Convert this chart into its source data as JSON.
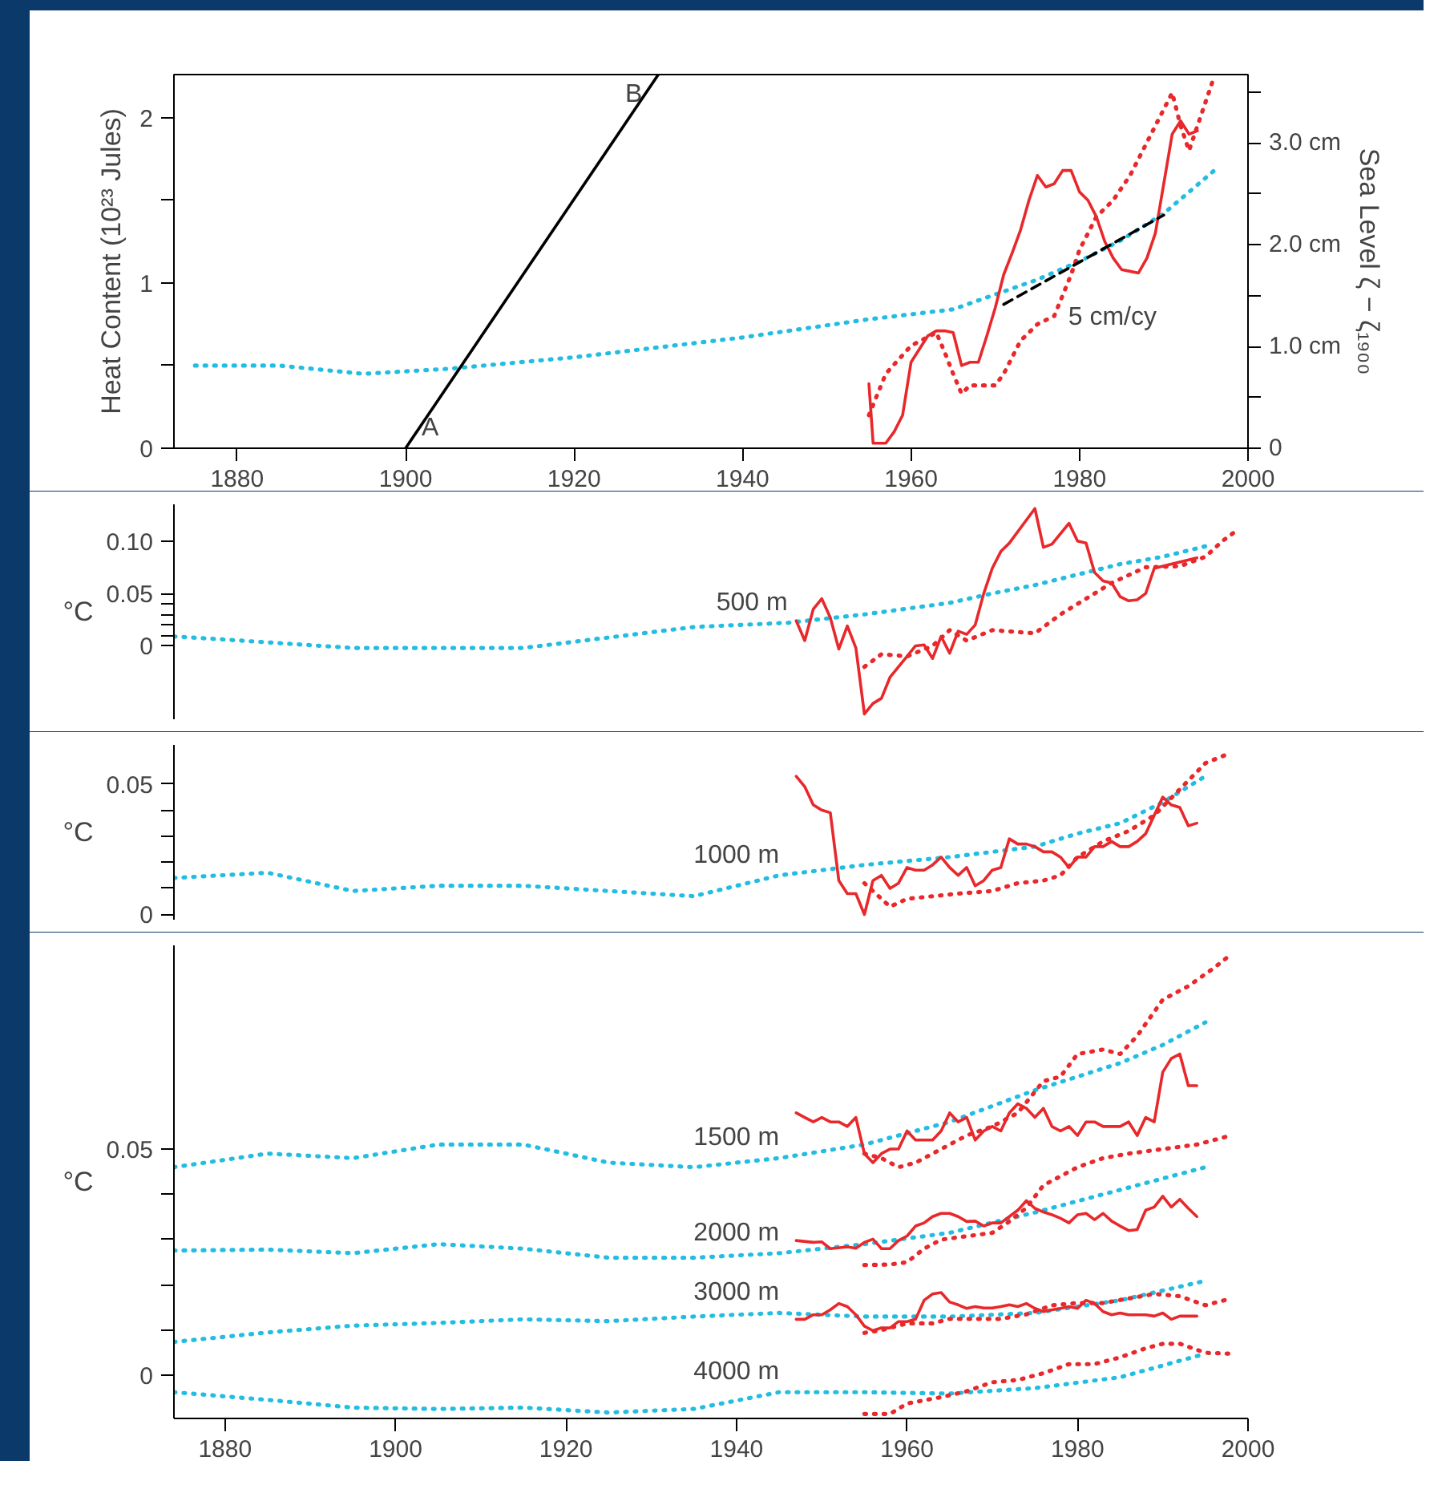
{
  "chart_data": [
    {
      "type": "line",
      "ylabel": "Heat Content (10²³ Jules)",
      "y2label": "Sea Level ζ − ζ₁₉₀₀",
      "xlim": [
        1872.5,
        2000
      ],
      "ylim": [
        0,
        2.26
      ],
      "y2lim": [
        0,
        3.67
      ],
      "xticks": [
        1880,
        1900,
        1920,
        1940,
        1960,
        1980,
        2000
      ],
      "yticks": [
        0,
        {
          "value": 0.5,
          "label": null
        },
        1,
        {
          "value": 1.5,
          "label": null
        },
        2
      ],
      "y2ticks": [
        0,
        {
          "value": 0.5,
          "label": null
        },
        {
          "value": 1,
          "label": "1.0 cm"
        },
        {
          "value": 1.5,
          "label": null
        },
        {
          "value": 2,
          "label": "2.0 cm"
        },
        {
          "value": 2.5,
          "label": null
        },
        {
          "value": 3,
          "label": "3.0 cm"
        },
        {
          "value": 3.5,
          "label": null
        }
      ],
      "series": [
        {
          "color": "#22bde0",
          "line_style": "dotted",
          "x": [
            1875,
            1885,
            1895,
            1905,
            1920,
            1940,
            1955,
            1965,
            1970,
            1975,
            1980,
            1985,
            1990,
            1996
          ],
          "values": [
            0.5,
            0.5,
            0.45,
            0.48,
            0.55,
            0.67,
            0.78,
            0.84,
            0.93,
            1.02,
            1.13,
            1.26,
            1.42,
            1.68
          ]
        },
        {
          "color": "#e8282b",
          "line_style": "solid",
          "x": [
            1955,
            1955.5,
            1957,
            1958,
            1959,
            1960,
            1961,
            1962,
            1963,
            1964,
            1965,
            1966,
            1967,
            1968,
            1969,
            1970,
            1971,
            1972,
            1973,
            1974,
            1975,
            1976,
            1977,
            1978,
            1979,
            1980,
            1981,
            1982,
            1983,
            1984,
            1985,
            1986,
            1987,
            1988,
            1989,
            1990,
            1991,
            1992,
            1993,
            1994
          ],
          "values": [
            0.39,
            0.03,
            0.03,
            0.1,
            0.2,
            0.52,
            0.6,
            0.68,
            0.71,
            0.71,
            0.7,
            0.5,
            0.52,
            0.52,
            0.68,
            0.85,
            1.05,
            1.18,
            1.32,
            1.5,
            1.65,
            1.58,
            1.6,
            1.68,
            1.68,
            1.55,
            1.5,
            1.4,
            1.25,
            1.15,
            1.08,
            1.07,
            1.06,
            1.15,
            1.3,
            1.6,
            1.9,
            1.98,
            1.9,
            1.92
          ]
        },
        {
          "color": "#e8282b",
          "line_style": "dotted",
          "x": [
            1955,
            1957,
            1960,
            1963,
            1964,
            1965,
            1966,
            1967,
            1968,
            1970,
            1971,
            1973,
            1975,
            1977,
            1979,
            1980,
            1982,
            1984,
            1986,
            1988,
            1990,
            1991,
            1992,
            1993,
            1994,
            1996
          ],
          "values": [
            0.2,
            0.45,
            0.62,
            0.7,
            0.58,
            0.45,
            0.33,
            0.38,
            0.38,
            0.38,
            0.45,
            0.65,
            0.75,
            0.8,
            1.05,
            1.2,
            1.4,
            1.5,
            1.65,
            1.85,
            2.05,
            2.15,
            1.95,
            1.8,
            1.95,
            2.25
          ]
        },
        {
          "color": "#000000",
          "line_style": "solid",
          "x": [
            1900,
            1930
          ],
          "values": [
            0,
            2.26
          ]
        },
        {
          "color": "#000000",
          "line_style": "dashed",
          "x": [
            1971,
            1990
          ],
          "values": [
            0.87,
            1.41
          ]
        }
      ],
      "annotations": [
        {
          "text": "A",
          "x": 1900,
          "y": 0
        },
        {
          "text": "B",
          "x": 1930,
          "y": 2.26
        },
        {
          "text": "5 cm/cy",
          "x": 1976,
          "y": 1.01
        }
      ]
    },
    {
      "type": "line",
      "ylabel": "°C",
      "xlim": [
        1874,
        2000
      ],
      "ylim": [
        -0.07,
        0.135
      ],
      "tick_labels": "y",
      "yticks": [
        0,
        {
          "value": 0.01,
          "label": null
        },
        {
          "value": 0.02,
          "label": null
        },
        {
          "value": 0.03,
          "label": null
        },
        {
          "value": 0.04,
          "label": null
        },
        0.05,
        {
          "value": 0.1,
          "label": "0.10"
        }
      ],
      "series": [
        {
          "color": "#22bde0",
          "line_style": "dotted",
          "x": [
            1874,
            1880,
            1895,
            1915,
            1935,
            1946,
            1955,
            1965,
            1970,
            1975,
            1980,
            1985,
            1990,
            1995
          ],
          "values": [
            0.009,
            0.006,
            -0.002,
            -0.002,
            0.018,
            0.022,
            0.03,
            0.041,
            0.05,
            0.058,
            0.068,
            0.078,
            0.085,
            0.095
          ]
        },
        {
          "color": "#e8282b",
          "line_style": "solid",
          "x": [
            1947,
            1948,
            1949,
            1950,
            1951,
            1952,
            1953,
            1954,
            1955,
            1956,
            1957,
            1958,
            1959,
            1960,
            1961,
            1962,
            1963,
            1964,
            1965,
            1966,
            1967,
            1968,
            1969,
            1970,
            1971,
            1972,
            1975,
            1976,
            1977,
            1979,
            1980,
            1981,
            1982,
            1983,
            1984,
            1985,
            1986,
            1987,
            1988,
            1989,
            1991,
            1994
          ],
          "values": [
            0.024,
            0.005,
            0.035,
            0.045,
            0.027,
            -0.003,
            0.019,
            -0.002,
            -0.065,
            -0.055,
            -0.05,
            -0.03,
            -0.02,
            -0.01,
            0.0,
            0.001,
            -0.012,
            0.009,
            -0.007,
            0.014,
            0.011,
            0.02,
            0.05,
            0.074,
            0.09,
            0.098,
            0.131,
            0.094,
            0.097,
            0.117,
            0.1,
            0.098,
            0.07,
            0.062,
            0.06,
            0.047,
            0.043,
            0.044,
            0.05,
            0.074,
            0.078,
            0.084
          ]
        },
        {
          "color": "#e8282b",
          "line_style": "dotted",
          "x": [
            1955,
            1957,
            1960,
            1963,
            1965,
            1967,
            1970,
            1975,
            1978,
            1981,
            1984,
            1988,
            1992,
            1995,
            1997,
            1999
          ],
          "values": [
            -0.02,
            -0.008,
            -0.01,
            0.0,
            0.015,
            0.005,
            0.015,
            0.012,
            0.03,
            0.045,
            0.06,
            0.075,
            0.076,
            0.085,
            0.1,
            0.112
          ]
        }
      ],
      "annotations": [
        {
          "text": "500 m",
          "x": 1946,
          "y": 0.022
        }
      ]
    },
    {
      "type": "line",
      "ylabel": "°C",
      "xlim": [
        1874,
        2000
      ],
      "ylim": [
        -0.002,
        0.065
      ],
      "tick_labels": "y",
      "yticks": [
        0,
        {
          "value": 0.01,
          "label": null
        },
        {
          "value": 0.02,
          "label": null
        },
        {
          "value": 0.03,
          "label": null
        },
        {
          "value": 0.04,
          "label": null
        },
        0.05
      ],
      "series": [
        {
          "color": "#22bde0",
          "line_style": "dotted",
          "x": [
            1874,
            1885,
            1895,
            1905,
            1915,
            1935,
            1945,
            1955,
            1965,
            1975,
            1980,
            1985,
            1990,
            1995
          ],
          "values": [
            0.014,
            0.016,
            0.009,
            0.011,
            0.011,
            0.007,
            0.015,
            0.019,
            0.022,
            0.026,
            0.031,
            0.035,
            0.043,
            0.053
          ]
        },
        {
          "color": "#e8282b",
          "line_style": "solid",
          "x": [
            1947,
            1948,
            1949,
            1950,
            1951,
            1952,
            1953,
            1954,
            1955,
            1956,
            1957,
            1958,
            1959,
            1960,
            1961,
            1962,
            1963,
            1964,
            1965,
            1966,
            1967,
            1968,
            1969,
            1970,
            1971,
            1972,
            1973,
            1974,
            1975,
            1976,
            1977,
            1978,
            1979,
            1980,
            1981,
            1982,
            1983,
            1984,
            1985,
            1986,
            1987,
            1988,
            1990,
            1991,
            1992,
            1993,
            1994
          ],
          "values": [
            0.053,
            0.049,
            0.042,
            0.04,
            0.039,
            0.013,
            0.008,
            0.008,
            0.0,
            0.013,
            0.015,
            0.01,
            0.012,
            0.018,
            0.017,
            0.017,
            0.019,
            0.022,
            0.018,
            0.015,
            0.018,
            0.011,
            0.013,
            0.017,
            0.018,
            0.029,
            0.027,
            0.027,
            0.026,
            0.024,
            0.024,
            0.022,
            0.018,
            0.022,
            0.022,
            0.026,
            0.026,
            0.028,
            0.026,
            0.026,
            0.028,
            0.031,
            0.045,
            0.042,
            0.041,
            0.034,
            0.035
          ]
        },
        {
          "color": "#e8282b",
          "line_style": "dotted",
          "x": [
            1955,
            1958,
            1960,
            1963,
            1966,
            1970,
            1973,
            1976,
            1978,
            1980,
            1983,
            1986,
            1989,
            1992,
            1995,
            1998
          ],
          "values": [
            0.012,
            0.003,
            0.006,
            0.007,
            0.008,
            0.009,
            0.012,
            0.013,
            0.015,
            0.022,
            0.028,
            0.032,
            0.038,
            0.048,
            0.058,
            0.062
          ]
        }
      ],
      "annotations": [
        {
          "text": "1000 m",
          "x": 1945,
          "y": 0.015
        }
      ]
    },
    {
      "type": "line",
      "ylabel": "°C",
      "xlim": [
        1874,
        2000
      ],
      "ylim": [
        -0.0095,
        0.095
      ],
      "xticks": [
        1880,
        1900,
        1920,
        1940,
        1960,
        1980,
        2000
      ],
      "yticks": [
        0,
        {
          "value": 0.01,
          "label": null
        },
        {
          "value": 0.02,
          "label": null
        },
        {
          "value": 0.03,
          "label": null
        },
        {
          "value": 0.04,
          "label": null
        },
        0.05
      ],
      "series": [
        {
          "color": "#22bde0",
          "line_style": "dotted",
          "x": [
            1874,
            1885,
            1895,
            1905,
            1915,
            1925,
            1935,
            1945,
            1955,
            1965,
            1975,
            1985,
            1990,
            1995
          ],
          "values": [
            0.046,
            0.049,
            0.048,
            0.051,
            0.051,
            0.047,
            0.046,
            0.048,
            0.051,
            0.056,
            0.063,
            0.069,
            0.073,
            0.078
          ]
        },
        {
          "color": "#e8282b",
          "line_style": "solid",
          "x": [
            1947,
            1948,
            1949,
            1950,
            1951,
            1952,
            1953,
            1954,
            1955,
            1956,
            1957,
            1958,
            1959,
            1960,
            1961,
            1962,
            1963,
            1964,
            1965,
            1966,
            1967,
            1968,
            1969,
            1970,
            1971,
            1972,
            1973,
            1974,
            1975,
            1976,
            1977,
            1978,
            1979,
            1980,
            1981,
            1982,
            1983,
            1984,
            1985,
            1986,
            1987,
            1988,
            1989,
            1990,
            1991,
            1992,
            1993,
            1994
          ],
          "values": [
            0.058,
            0.057,
            0.056,
            0.057,
            0.056,
            0.056,
            0.055,
            0.057,
            0.049,
            0.047,
            0.049,
            0.05,
            0.05,
            0.054,
            0.052,
            0.052,
            0.052,
            0.054,
            0.058,
            0.056,
            0.057,
            0.052,
            0.054,
            0.055,
            0.054,
            0.058,
            0.06,
            0.059,
            0.057,
            0.059,
            0.055,
            0.054,
            0.055,
            0.053,
            0.056,
            0.056,
            0.055,
            0.055,
            0.055,
            0.056,
            0.053,
            0.057,
            0.056,
            0.067,
            0.07,
            0.071,
            0.064,
            0.064
          ]
        },
        {
          "color": "#e8282b",
          "line_style": "dotted",
          "x": [
            1955,
            1957,
            1959,
            1961,
            1964,
            1967,
            1970,
            1973,
            1976,
            1978,
            1980,
            1983,
            1985,
            1987,
            1990,
            1993,
            1996,
            1998
          ],
          "values": [
            0.049,
            0.048,
            0.046,
            0.047,
            0.05,
            0.053,
            0.055,
            0.058,
            0.065,
            0.066,
            0.071,
            0.072,
            0.071,
            0.075,
            0.083,
            0.086,
            0.09,
            0.093
          ]
        },
        {
          "color": "#22bde0",
          "line_style": "dotted",
          "x": [
            1874,
            1885,
            1895,
            1905,
            1915,
            1925,
            1935,
            1945,
            1955,
            1965,
            1975,
            1985,
            1995
          ],
          "values": [
            0.0276,
            0.0278,
            0.027,
            0.029,
            0.028,
            0.026,
            0.026,
            0.027,
            0.029,
            0.0315,
            0.036,
            0.041,
            0.046
          ]
        },
        {
          "color": "#e8282b",
          "line_style": "solid",
          "x": [
            1947,
            1949,
            1950,
            1951,
            1953,
            1954,
            1955,
            1956,
            1957,
            1958,
            1959,
            1960,
            1961,
            1962,
            1963,
            1964,
            1965,
            1966,
            1967,
            1968,
            1969,
            1970,
            1971,
            1972,
            1973,
            1974,
            1975,
            1976,
            1977,
            1978,
            1979,
            1980,
            1981,
            1982,
            1983,
            1984,
            1985,
            1986,
            1987,
            1988,
            1989,
            1990,
            1991,
            1992,
            1993,
            1994
          ],
          "values": [
            0.0298,
            0.0294,
            0.0295,
            0.028,
            0.0284,
            0.0281,
            0.0294,
            0.0301,
            0.028,
            0.028,
            0.0298,
            0.0308,
            0.033,
            0.0337,
            0.0351,
            0.0358,
            0.0358,
            0.0351,
            0.034,
            0.0341,
            0.033,
            0.0337,
            0.0337,
            0.0351,
            0.0365,
            0.0386,
            0.0369,
            0.0361,
            0.0355,
            0.0347,
            0.0337,
            0.0355,
            0.0358,
            0.0344,
            0.0358,
            0.0341,
            0.033,
            0.032,
            0.0322,
            0.0365,
            0.0372,
            0.0396,
            0.0372,
            0.0389,
            0.0369,
            0.0351
          ]
        },
        {
          "color": "#e8282b",
          "line_style": "dotted",
          "x": [
            1955,
            1958,
            1960,
            1962,
            1964,
            1966,
            1968,
            1970,
            1972,
            1974,
            1976,
            1978,
            1980,
            1983,
            1986,
            1990,
            1994,
            1998
          ],
          "values": [
            0.0244,
            0.0245,
            0.025,
            0.028,
            0.03,
            0.0305,
            0.031,
            0.0315,
            0.034,
            0.037,
            0.042,
            0.044,
            0.046,
            0.048,
            0.049,
            0.05,
            0.051,
            0.053
          ]
        },
        {
          "color": "#22bde0",
          "line_style": "dotted",
          "x": [
            1874,
            1885,
            1895,
            1905,
            1915,
            1925,
            1935,
            1945,
            1955,
            1965,
            1975,
            1985,
            1995
          ],
          "values": [
            0.0074,
            0.0095,
            0.011,
            0.0116,
            0.0124,
            0.012,
            0.013,
            0.0138,
            0.013,
            0.013,
            0.0138,
            0.0166,
            0.0209
          ]
        },
        {
          "color": "#e8282b",
          "line_style": "solid",
          "x": [
            1947,
            1948,
            1949,
            1950,
            1951,
            1952,
            1953,
            1954,
            1955,
            1956,
            1957,
            1958,
            1959,
            1960,
            1961,
            1962,
            1963,
            1964,
            1965,
            1966,
            1967,
            1968,
            1969,
            1970,
            1971,
            1972,
            1973,
            1974,
            1975,
            1976,
            1977,
            1978,
            1979,
            1980,
            1981,
            1982,
            1983,
            1984,
            1985,
            1986,
            1987,
            1988,
            1989,
            1990,
            1991,
            1992,
            1993,
            1994
          ],
          "values": [
            0.0124,
            0.0124,
            0.0134,
            0.0134,
            0.0145,
            0.0159,
            0.0152,
            0.0134,
            0.0109,
            0.0099,
            0.0105,
            0.0105,
            0.0119,
            0.0119,
            0.0124,
            0.0166,
            0.018,
            0.0183,
            0.0162,
            0.0156,
            0.0148,
            0.0152,
            0.0149,
            0.0149,
            0.0152,
            0.0156,
            0.0152,
            0.0159,
            0.0148,
            0.0141,
            0.0145,
            0.0148,
            0.0152,
            0.0148,
            0.0166,
            0.0159,
            0.0141,
            0.0134,
            0.0138,
            0.0134,
            0.0134,
            0.0134,
            0.0131,
            0.0138,
            0.0124,
            0.0131,
            0.0131,
            0.0131
          ]
        },
        {
          "color": "#e8282b",
          "line_style": "dotted",
          "x": [
            1955,
            1957,
            1960,
            1963,
            1965,
            1968,
            1971,
            1974,
            1977,
            1980,
            1983,
            1986,
            1989,
            1992,
            1995,
            1998
          ],
          "values": [
            0.0094,
            0.01,
            0.0115,
            0.0115,
            0.0125,
            0.0125,
            0.0125,
            0.0135,
            0.0155,
            0.016,
            0.016,
            0.017,
            0.018,
            0.0175,
            0.0155,
            0.017
          ]
        },
        {
          "color": "#22bde0",
          "line_style": "dotted",
          "x": [
            1874,
            1885,
            1895,
            1905,
            1915,
            1925,
            1935,
            1945,
            1955,
            1965,
            1975,
            1985,
            1995
          ],
          "values": [
            -0.0037,
            -0.0054,
            -0.0071,
            -0.0074,
            -0.0071,
            -0.0082,
            -0.0074,
            -0.0037,
            -0.0037,
            -0.004,
            -0.0028,
            -0.0004,
            0.0048
          ]
        },
        {
          "color": "#e8282b",
          "line_style": "dotted",
          "x": [
            1955,
            1958,
            1960,
            1964,
            1967,
            1970,
            1973,
            1976,
            1979,
            1982,
            1985,
            1988,
            1990,
            1992,
            1995,
            1998
          ],
          "values": [
            -0.0085,
            -0.0085,
            -0.0062,
            -0.0048,
            -0.0035,
            -0.0015,
            -0.001,
            0.0005,
            0.0025,
            0.0025,
            0.004,
            0.006,
            0.007,
            0.007,
            0.005,
            0.0048
          ]
        }
      ],
      "annotations": [
        {
          "text": "1500 m",
          "x": 1945,
          "y": 0.048
        },
        {
          "text": "2000 m",
          "x": 1945,
          "y": 0.027
        },
        {
          "text": "3000 m",
          "x": 1945,
          "y": 0.0138
        },
        {
          "text": "4000 m",
          "x": 1945,
          "y": -0.0037
        }
      ]
    }
  ]
}
